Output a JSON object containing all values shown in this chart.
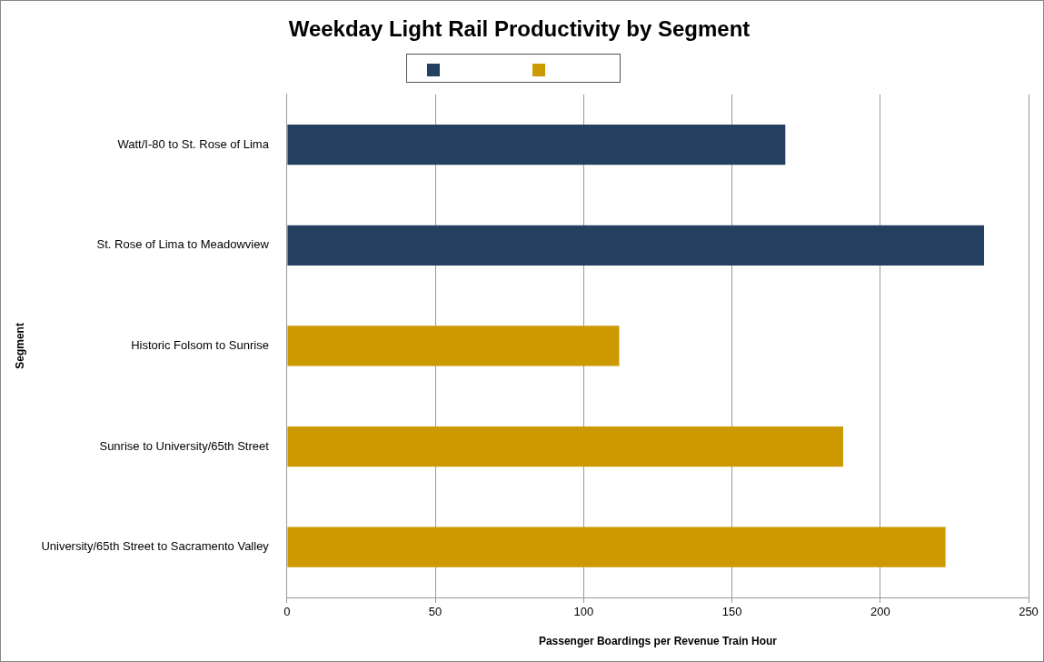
{
  "chart_data": {
    "type": "bar",
    "orientation": "horizontal",
    "title": "Weekday Light Rail Productivity by Segment",
    "xlabel": "Passenger Boardings per Revenue Train Hour",
    "ylabel": "Segment",
    "categories": [
      "Watt/I-80 to St. Rose of Lima",
      "St. Rose of Lima to Meadowview",
      "Historic Folsom to Sunrise",
      "Sunrise to University/65th Street",
      "University/65th Street to Sacramento Valley"
    ],
    "series": [
      {
        "color": "#253f60",
        "values": [
          168,
          235,
          null,
          null,
          null
        ]
      },
      {
        "color": "#cc9900",
        "values": [
          null,
          null,
          112,
          187.5,
          222
        ]
      }
    ],
    "xlim": [
      0,
      250
    ],
    "xticks": [
      0,
      50,
      100,
      150,
      200,
      250
    ],
    "grid": "x"
  }
}
